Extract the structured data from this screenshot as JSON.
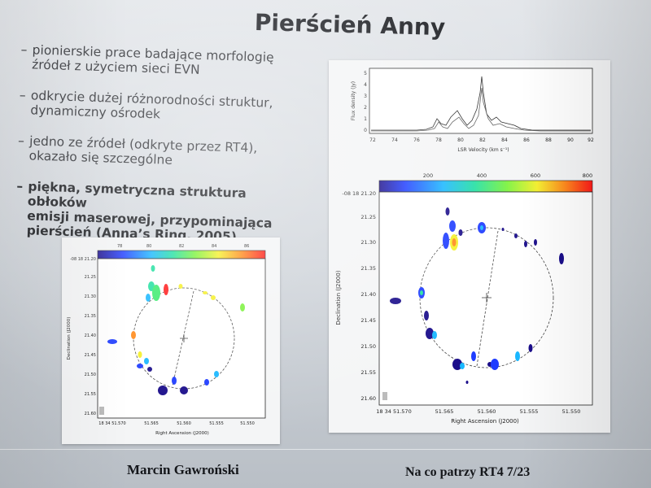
{
  "slide": {
    "title": "Pierścień Anny",
    "bullets": [
      {
        "line1": "pionierskie prace badające morfologię",
        "line2": "źródeł z użyciem sieci EVN",
        "bold": false
      },
      {
        "line1": "odkrycie dużej różnorodności struktur,",
        "line2": "dynamiczny ośrodek",
        "bold": false
      },
      {
        "line1": "jedno ze źródeł (odkryte przez RT4),",
        "line2": "okazało się szczególne",
        "bold": false
      },
      {
        "line1": "piękna, symetryczna struktura obłoków",
        "line2": "emisji maserowej, przypominająca",
        "line3": "pierścień (Anna’s Ring, 2005)",
        "bold": true
      }
    ],
    "footer_author": "Marcin Gawroński",
    "footer_right": "Na co patrzy RT4   7/23"
  },
  "left_figure": {
    "colorbar_ticks": [
      "78",
      "80",
      "82",
      "84",
      "86"
    ],
    "y_ticks": [
      "-08 18 21.20",
      "21.25",
      "21.30",
      "21.35",
      "21.40",
      "21.45",
      "21.50",
      "21.55",
      "21.60"
    ],
    "x_ticks": [
      "18 34 51.570",
      "51.565",
      "51.560",
      "51.555",
      "51.550"
    ],
    "ylabel": "Declination (J2000)",
    "xlabel": "Right Ascension (J2000)"
  },
  "spectrum": {
    "y_ticks": [
      "0",
      "1",
      "2",
      "3",
      "4",
      "5"
    ],
    "x_ticks": [
      "72",
      "74",
      "76",
      "78",
      "80",
      "82",
      "84",
      "86",
      "88",
      "90",
      "92"
    ],
    "ylabel": "Flux density (Jy)",
    "xlabel": "LSR Velocity (km s⁻¹)"
  },
  "right_figure": {
    "colorbar_ticks": [
      "200",
      "400",
      "600",
      "800"
    ],
    "y_ticks": [
      "-08 18 21.20",
      "21.25",
      "21.30",
      "21.35",
      "21.40",
      "21.45",
      "21.50",
      "21.55",
      "21.60"
    ],
    "x_ticks": [
      "18 34 51.570",
      "51.565",
      "51.560",
      "51.555",
      "51.550"
    ],
    "ylabel": "Declination (J2000)",
    "xlabel": "Right Ascension (J2000)"
  },
  "colors": {
    "colorbar": [
      "#1a0d8a",
      "#1e3cff",
      "#19b7ff",
      "#22e0a0",
      "#7bf23c",
      "#f5f02a",
      "#ff8a1a",
      "#ff1a1a"
    ],
    "spot_blue": "#0a1a8a",
    "ring_dash": "#444444"
  }
}
